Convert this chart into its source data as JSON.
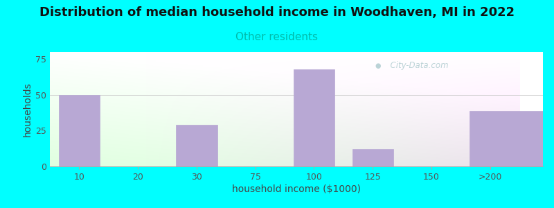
{
  "title": "Distribution of median household income in Woodhaven, MI in 2022",
  "subtitle": "Other residents",
  "xlabel": "household income ($1000)",
  "ylabel": "households",
  "background_color": "#00FFFF",
  "bar_color": "#b8a8d4",
  "bar_edge_color": "#b8a8d4",
  "categories": [
    "10",
    "20",
    "30",
    "75",
    "100",
    "125",
    "150",
    ">200"
  ],
  "values": [
    50,
    0,
    29,
    0,
    68,
    12,
    0,
    39
  ],
  "ylim": [
    0,
    80
  ],
  "yticks": [
    0,
    25,
    50,
    75
  ],
  "title_fontsize": 13,
  "subtitle_fontsize": 11,
  "subtitle_color": "#00bbaa",
  "axis_label_fontsize": 10,
  "tick_fontsize": 9,
  "watermark_text": "  City-Data.com",
  "watermark_color": "#b0ccd0",
  "grid_color": "#ddddee",
  "title_color": "#111111"
}
